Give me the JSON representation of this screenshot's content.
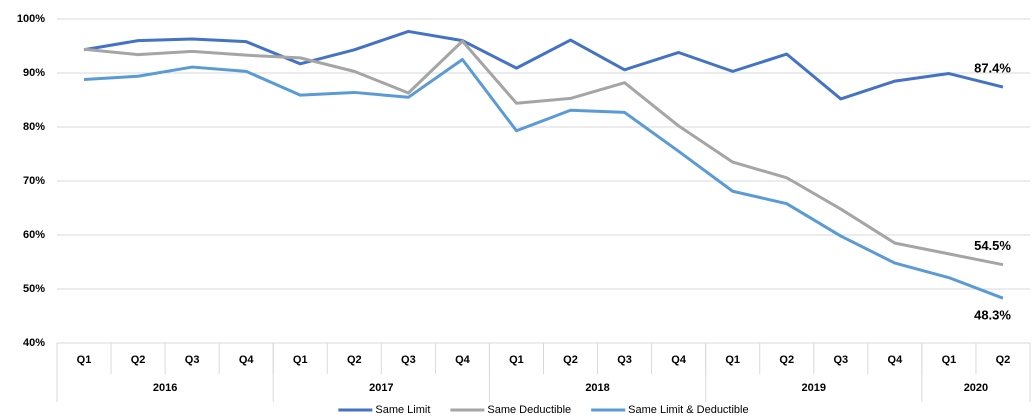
{
  "chart_data": {
    "type": "line",
    "categories": [
      "Q1",
      "Q2",
      "Q3",
      "Q4",
      "Q1",
      "Q2",
      "Q3",
      "Q4",
      "Q1",
      "Q2",
      "Q3",
      "Q4",
      "Q1",
      "Q2",
      "Q3",
      "Q4",
      "Q1",
      "Q2"
    ],
    "category_groups": [
      {
        "name": "2016",
        "count": 4
      },
      {
        "name": "2017",
        "count": 4
      },
      {
        "name": "2018",
        "count": 4
      },
      {
        "name": "2019",
        "count": 4
      },
      {
        "name": "2020",
        "count": 2
      }
    ],
    "series": [
      {
        "name": "Same Limit",
        "color": "#4472c4",
        "values": [
          94.3,
          96.0,
          96.3,
          95.8,
          91.7,
          94.3,
          97.7,
          96.0,
          90.9,
          96.1,
          90.6,
          93.8,
          90.3,
          93.5,
          85.2,
          88.5,
          89.9,
          87.4
        ],
        "value_labels": [
          null,
          null,
          null,
          null,
          null,
          null,
          null,
          null,
          null,
          null,
          null,
          null,
          null,
          null,
          null,
          null,
          null,
          "87.4%"
        ]
      },
      {
        "name": "Same Deductible",
        "color": "#a5a5a5",
        "values": [
          94.4,
          93.4,
          94.0,
          93.3,
          92.8,
          90.3,
          86.3,
          95.9,
          84.4,
          85.3,
          88.2,
          80.2,
          73.5,
          70.6,
          64.8,
          58.5,
          56.5,
          54.5
        ],
        "value_labels": [
          null,
          null,
          null,
          null,
          null,
          null,
          null,
          null,
          null,
          null,
          null,
          null,
          null,
          null,
          null,
          null,
          null,
          "54.5%"
        ]
      },
      {
        "name": "Same Limit & Deductible",
        "color": "#5b9bd5",
        "values": [
          88.8,
          89.4,
          91.1,
          90.3,
          85.9,
          86.4,
          85.5,
          92.5,
          79.3,
          83.1,
          82.7,
          75.5,
          68.1,
          65.8,
          59.8,
          54.8,
          52.1,
          48.3
        ],
        "value_labels": [
          null,
          null,
          null,
          null,
          null,
          null,
          null,
          null,
          null,
          null,
          null,
          null,
          null,
          null,
          null,
          null,
          null,
          "48.3%"
        ]
      }
    ],
    "ylim": [
      40,
      100
    ],
    "yticks": [
      {
        "value": 40,
        "label": "40%"
      },
      {
        "value": 50,
        "label": "50%"
      },
      {
        "value": 60,
        "label": "60%"
      },
      {
        "value": 70,
        "label": "70%"
      },
      {
        "value": 80,
        "label": "80%"
      },
      {
        "value": 90,
        "label": "90%"
      },
      {
        "value": 100,
        "label": "100%"
      }
    ],
    "grid": true,
    "legend": "bottom"
  }
}
